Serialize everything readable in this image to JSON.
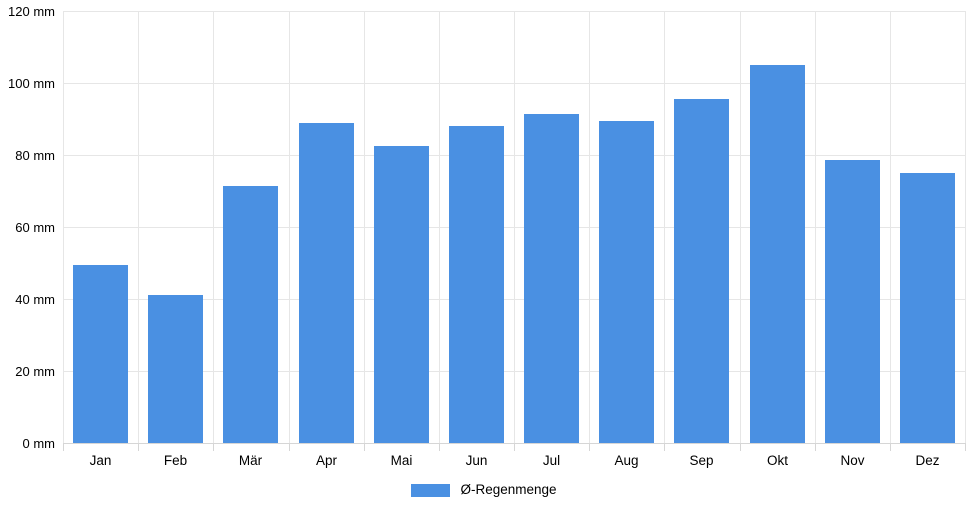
{
  "chart_data": {
    "type": "bar",
    "title": "",
    "categories": [
      "Jan",
      "Feb",
      "Mär",
      "Apr",
      "Mai",
      "Jun",
      "Jul",
      "Aug",
      "Sep",
      "Okt",
      "Nov",
      "Dez"
    ],
    "series": [
      {
        "name": "Ø-Regenmenge",
        "values": [
          49.5,
          41,
          71.5,
          89,
          82.5,
          88,
          91.5,
          89.5,
          95.5,
          105,
          78.5,
          75
        ]
      }
    ],
    "unit": "mm",
    "ylim": [
      0,
      120
    ],
    "ytick_step": 20,
    "ytick_labels": [
      "0 mm",
      "20 mm",
      "40 mm",
      "60 mm",
      "80 mm",
      "100 mm",
      "120 mm"
    ],
    "xlabel": "",
    "ylabel": "",
    "grid": true,
    "legend_position": "bottom"
  },
  "colors": {
    "bar": "#4a90e2",
    "grid": "#e6e6e6",
    "axis": "#d6d6d6",
    "text": "#000000",
    "background": "#ffffff"
  }
}
